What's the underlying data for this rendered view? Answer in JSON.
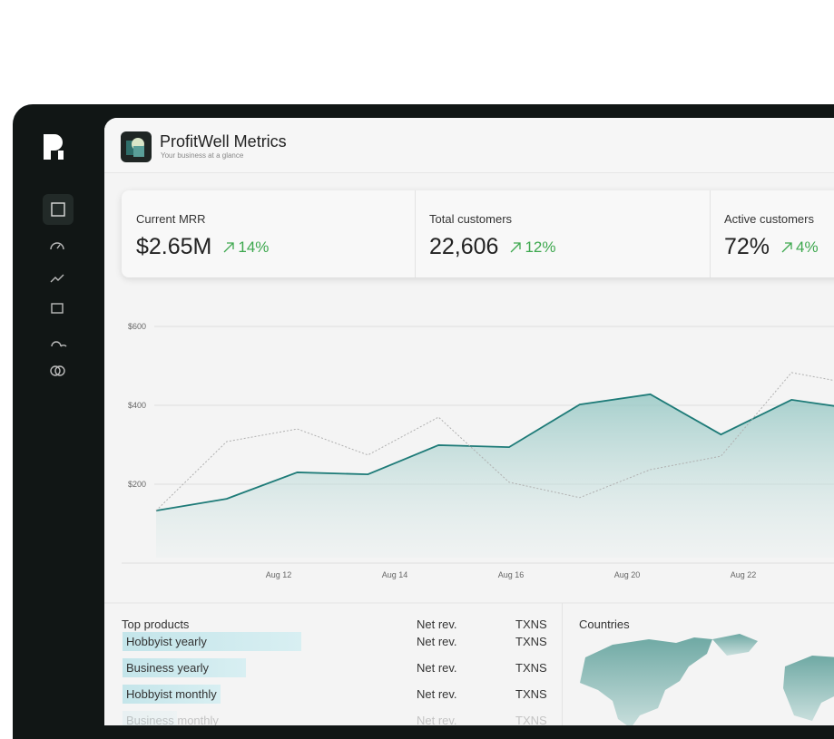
{
  "header": {
    "title": "ProfitWell Metrics",
    "subtitle": "Your business at a glance"
  },
  "metrics": [
    {
      "label": "Current MRR",
      "value": "$2.65M",
      "change": "14%"
    },
    {
      "label": "Total customers",
      "value": "22,606",
      "change": "12%"
    },
    {
      "label": "Active customers",
      "value": "72%",
      "change": "4%"
    }
  ],
  "chart": {
    "type": "area",
    "x_labels": [
      "Aug 12",
      "Aug 14",
      "Aug 16",
      "Aug 20",
      "Aug 22"
    ],
    "ylim": [
      0,
      600
    ],
    "yticks": [
      {
        "value": 200,
        "label": "$200"
      },
      {
        "value": 400,
        "label": "$400"
      },
      {
        "value": 600,
        "label": "$600"
      }
    ],
    "series": [
      {
        "color": "#1e7b78",
        "style": "solid",
        "values": [
          133,
          163,
          230,
          225,
          299,
          294,
          402,
          428,
          326,
          414,
          388
        ]
      },
      {
        "color": "#b0b0b0",
        "style": "dotted",
        "values": [
          133,
          308,
          340,
          274,
          370,
          205,
          166,
          237,
          271,
          483,
          450
        ]
      }
    ]
  },
  "products": {
    "title": "Top products",
    "columns": [
      "Net rev.",
      "TXNS"
    ],
    "rows": [
      {
        "name": "Hobbyist yearly",
        "net_rev": "Net rev.",
        "txns": "TXNS"
      },
      {
        "name": "Business yearly",
        "net_rev": "Net rev.",
        "txns": "TXNS"
      },
      {
        "name": "Hobbyist monthly",
        "net_rev": "Net rev.",
        "txns": "TXNS"
      },
      {
        "name": "Business monthly",
        "net_rev": "Net rev.",
        "txns": "TXNS"
      }
    ]
  },
  "countries": {
    "title": "Countries"
  }
}
